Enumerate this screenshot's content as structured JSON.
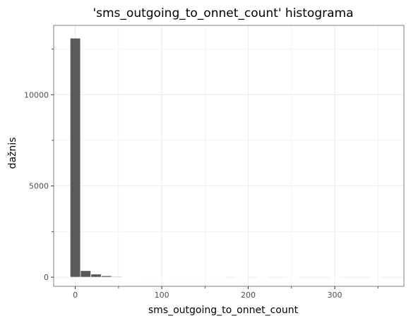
{
  "chart_data": {
    "type": "bar",
    "title": "'sms_outgoing_to_onnet_count' histograma",
    "xlabel": "sms_outgoing_to_onnet_count",
    "ylabel": "dažnis",
    "xlim": [
      -25,
      380
    ],
    "ylim": [
      -500,
      13800
    ],
    "xticks": [
      0,
      100,
      200,
      300
    ],
    "yticks": [
      0,
      5000,
      10000
    ],
    "grid": true,
    "bin_width": 12,
    "bins": [
      {
        "x": 0,
        "count": 13100
      },
      {
        "x": 12,
        "count": 360
      },
      {
        "x": 24,
        "count": 170
      },
      {
        "x": 36,
        "count": 80
      },
      {
        "x": 48,
        "count": 40
      },
      {
        "x": 60,
        "count": 15
      },
      {
        "x": 72,
        "count": 8
      },
      {
        "x": 84,
        "count": 5
      },
      {
        "x": 96,
        "count": 3
      },
      {
        "x": 108,
        "count": 2
      },
      {
        "x": 120,
        "count": 1
      },
      {
        "x": 132,
        "count": 1
      },
      {
        "x": 144,
        "count": 1
      },
      {
        "x": 156,
        "count": 1
      },
      {
        "x": 168,
        "count": 1
      },
      {
        "x": 180,
        "count": 0
      },
      {
        "x": 192,
        "count": 1
      },
      {
        "x": 204,
        "count": 0
      },
      {
        "x": 216,
        "count": 1
      },
      {
        "x": 228,
        "count": 0
      },
      {
        "x": 240,
        "count": 0
      },
      {
        "x": 252,
        "count": 1
      },
      {
        "x": 264,
        "count": 0
      },
      {
        "x": 276,
        "count": 0
      },
      {
        "x": 288,
        "count": 0
      },
      {
        "x": 300,
        "count": 1
      },
      {
        "x": 312,
        "count": 0
      },
      {
        "x": 324,
        "count": 0
      },
      {
        "x": 336,
        "count": 0
      },
      {
        "x": 348,
        "count": 1
      }
    ],
    "colors": {
      "bar": "#595959",
      "bar_edge": "#ffffff",
      "grid": "#ebebeb",
      "panel_border": "#7f7f7f"
    }
  }
}
